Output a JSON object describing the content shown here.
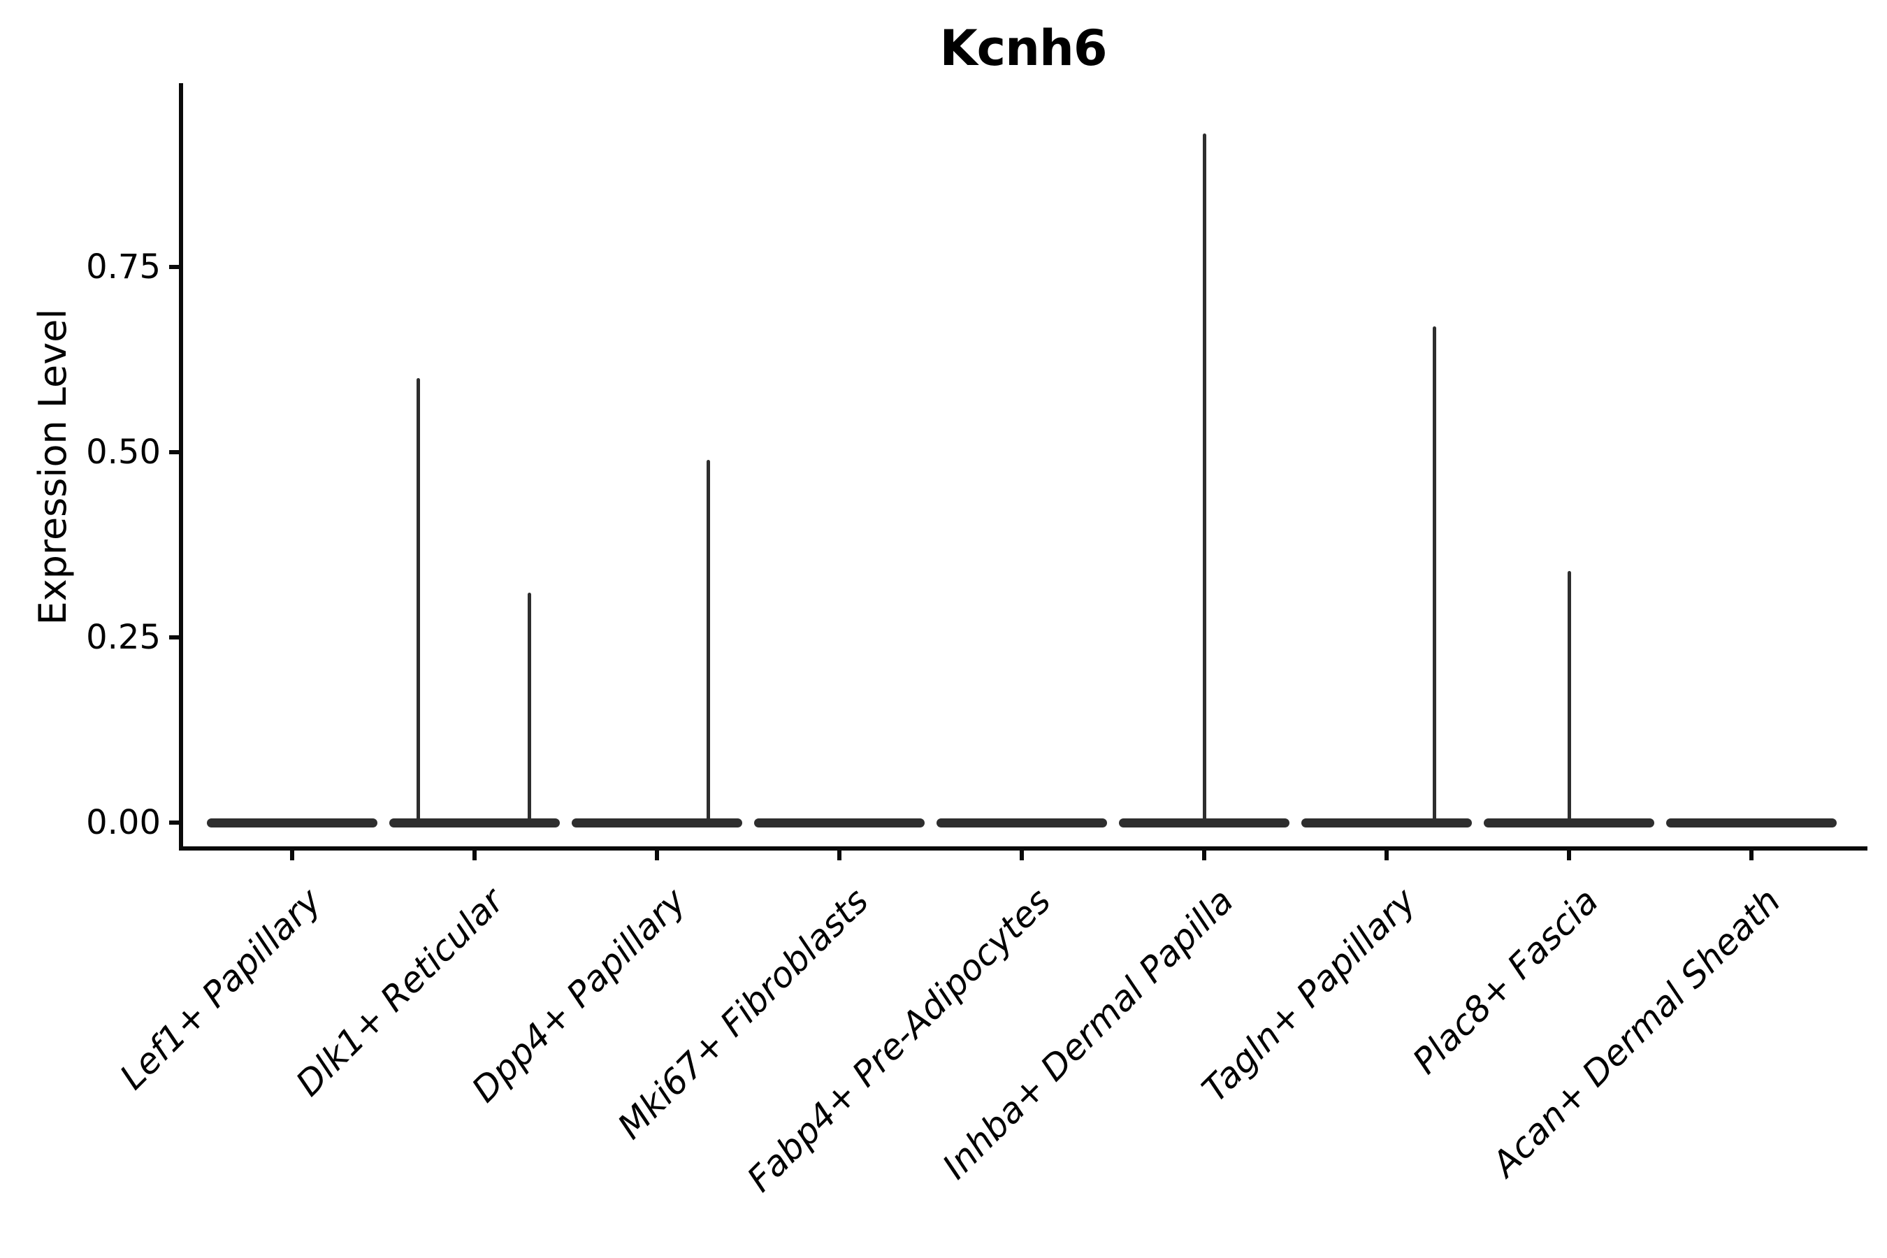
{
  "title": "Kcnh6",
  "y_axis": {
    "label": "Expression Level",
    "ticks": [
      "0.00",
      "0.25",
      "0.50",
      "0.75"
    ],
    "tick_values": [
      0,
      0.25,
      0.5,
      0.75
    ]
  },
  "chart_data": {
    "type": "violin",
    "title": "Kcnh6",
    "xlabel": "",
    "ylabel": "Expression Level",
    "ylim": [
      0,
      1.0
    ],
    "y_ticks": [
      0,
      0.25,
      0.5,
      0.75
    ],
    "grid": false,
    "legend": false,
    "categories": [
      "Lef1+ Papillary",
      "Dlk1+ Reticular",
      "Dpp4+ Papillary",
      "Mki67+ Fibroblasts",
      "Fabp4+ Pre-Adipocytes",
      "Inhba+ Dermal Papilla",
      "Tagln+ Papillary",
      "Plac8+ Fascia",
      "Acan+ Dermal Sheath"
    ],
    "violins": [
      {
        "category": "Lef1+ Papillary",
        "baseline_value": 0,
        "spikes": []
      },
      {
        "category": "Dlk1+ Reticular",
        "baseline_value": 0,
        "spikes": [
          {
            "value": 0.6,
            "offset": -0.31
          },
          {
            "value": 0.31,
            "offset": 0.3
          }
        ]
      },
      {
        "category": "Dpp4+ Papillary",
        "baseline_value": 0,
        "spikes": [
          {
            "value": 0.49,
            "offset": 0.28
          }
        ]
      },
      {
        "category": "Mki67+ Fibroblasts",
        "baseline_value": 0,
        "spikes": []
      },
      {
        "category": "Fabp4+ Pre-Adipocytes",
        "baseline_value": 0,
        "spikes": []
      },
      {
        "category": "Inhba+ Dermal Papilla",
        "baseline_value": 0,
        "spikes": [
          {
            "value": 0.93,
            "offset": 0
          }
        ]
      },
      {
        "category": "Tagln+ Papillary",
        "baseline_value": 0,
        "spikes": [
          {
            "value": 0.67,
            "offset": 0.26
          }
        ]
      },
      {
        "category": "Plac8+ Fascia",
        "baseline_value": 0,
        "spikes": [
          {
            "value": 0.34,
            "offset": 0
          }
        ]
      },
      {
        "category": "Acan+ Dermal Sheath",
        "baseline_value": 0,
        "spikes": []
      }
    ],
    "style": {
      "violin_color": "#2e2e2e",
      "axis_color": "#0a0a0a",
      "text_color": "#000000",
      "background": "#ffffff"
    }
  }
}
